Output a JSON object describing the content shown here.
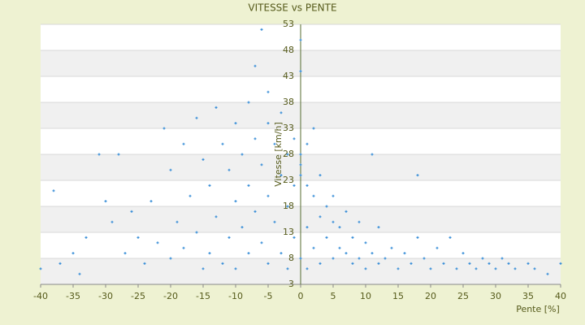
{
  "chart_data": {
    "type": "scatter",
    "title": "VITESSE vs PENTE",
    "x_label": "Pente [%]",
    "y_label": "Vitesse [km/h]",
    "xlim": [
      -40,
      40
    ],
    "xticks": [
      -40,
      -35,
      -30,
      -25,
      -20,
      -15,
      -10,
      -5,
      0,
      5,
      10,
      15,
      20,
      25,
      30,
      35,
      40
    ],
    "ylim": [
      3,
      53
    ],
    "yticks": [
      3,
      8,
      13,
      18,
      23,
      28,
      33,
      38,
      43,
      48,
      53
    ],
    "grid": true,
    "color": "#3a8fd8",
    "x": [
      -40,
      -38,
      -37,
      -35,
      -34,
      -33,
      -31,
      -30,
      -29,
      -28,
      -27,
      -26,
      -25,
      -24,
      -23,
      -22,
      -21,
      -20,
      -20,
      -19,
      -18,
      -18,
      -17,
      -16,
      -16,
      -15,
      -15,
      -14,
      -14,
      -13,
      -13,
      -12,
      -12,
      -11,
      -11,
      -10,
      -10,
      -10,
      -9,
      -9,
      -8,
      -8,
      -8,
      -7,
      -7,
      -7,
      -6,
      -6,
      -6,
      -5,
      -5,
      -5,
      -5,
      -4,
      -4,
      -3,
      -3,
      -3,
      -2,
      -2,
      -2,
      -1,
      -1,
      -1,
      0,
      0,
      0,
      0,
      0,
      0,
      1,
      1,
      1,
      1,
      2,
      2,
      2,
      3,
      3,
      3,
      4,
      4,
      5,
      5,
      5,
      6,
      6,
      7,
      7,
      8,
      8,
      9,
      9,
      10,
      10,
      11,
      11,
      12,
      12,
      13,
      14,
      15,
      16,
      17,
      18,
      18,
      19,
      20,
      21,
      22,
      23,
      24,
      25,
      26,
      27,
      28,
      29,
      30,
      31,
      32,
      33,
      35,
      36,
      38,
      40
    ],
    "y": [
      6,
      21,
      7,
      9,
      5,
      12,
      28,
      19,
      15,
      28,
      9,
      17,
      12,
      7,
      19,
      11,
      33,
      25,
      8,
      15,
      30,
      10,
      20,
      35,
      13,
      27,
      6,
      22,
      9,
      37,
      16,
      30,
      7,
      25,
      12,
      34,
      19,
      6,
      28,
      14,
      38,
      22,
      9,
      45,
      31,
      17,
      52,
      26,
      11,
      40,
      34,
      20,
      7,
      30,
      15,
      36,
      24,
      9,
      28,
      18,
      6,
      31,
      22,
      12,
      50,
      44,
      28,
      26,
      24,
      8,
      30,
      22,
      14,
      6,
      33,
      20,
      10,
      24,
      16,
      7,
      18,
      12,
      20,
      15,
      8,
      14,
      10,
      17,
      9,
      12,
      7,
      15,
      8,
      11,
      6,
      28,
      9,
      14,
      7,
      8,
      10,
      6,
      9,
      7,
      24,
      12,
      8,
      6,
      10,
      7,
      12,
      6,
      9,
      7,
      6,
      8,
      7,
      6,
      8,
      7,
      6,
      7,
      6,
      5,
      7
    ]
  }
}
